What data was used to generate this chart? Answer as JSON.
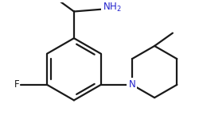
{
  "background": "#ffffff",
  "line_color": "#1a1a1a",
  "n_color": "#2222cc",
  "f_color": "#1a1a1a",
  "nh2_color": "#2222cc",
  "line_width": 1.6,
  "fig_width": 2.51,
  "fig_height": 1.45,
  "dpi": 100
}
